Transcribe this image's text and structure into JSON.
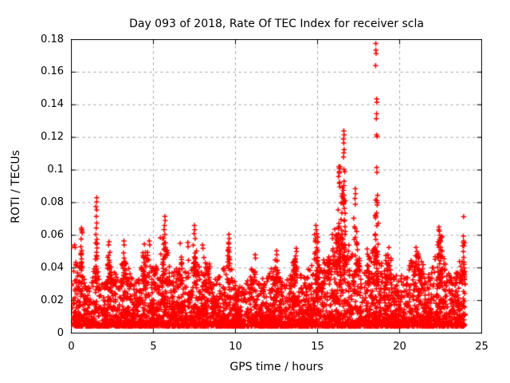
{
  "page": {
    "background": "#ffffff"
  },
  "chart_data": {
    "type": "scatter",
    "title": "Day 093 of 2018, Rate Of TEC Index for receiver scla",
    "xlabel": "GPS time / hours",
    "ylabel": "ROTI / TECUs",
    "series_name": "ROTI",
    "marker": "plus",
    "marker_color": "#ff0000",
    "axis_color": "#000000",
    "grid_color": "#9c9c9c",
    "grid": true,
    "legend": "none",
    "xlim": [
      0,
      25
    ],
    "ylim": [
      0,
      0.18
    ],
    "xticks": {
      "values": [
        0,
        5,
        10,
        15,
        20,
        25
      ],
      "labels": [
        "0",
        "5",
        "10",
        "15",
        "20",
        "25"
      ]
    },
    "yticks": {
      "values": [
        0,
        0.02,
        0.04,
        0.06,
        0.08,
        0.1,
        0.12,
        0.14,
        0.16,
        0.18
      ],
      "labels": [
        "0",
        "0.02",
        "0.04",
        "0.06",
        "0.08",
        "0.1",
        "0.12",
        "0.14",
        "0.16",
        "0.18"
      ]
    },
    "data_time_range": [
      0,
      24
    ],
    "baseline_noise": {
      "y_min": 0.0042,
      "count": 4300,
      "skew": 2.4,
      "seed": 20180931
    },
    "envelope": [
      [
        0.0,
        0.04
      ],
      [
        0.3,
        0.045
      ],
      [
        0.65,
        0.05
      ],
      [
        0.9,
        0.03
      ],
      [
        1.2,
        0.032
      ],
      [
        1.55,
        0.048
      ],
      [
        1.8,
        0.036
      ],
      [
        2.1,
        0.033
      ],
      [
        2.3,
        0.052
      ],
      [
        2.6,
        0.04
      ],
      [
        2.9,
        0.033
      ],
      [
        3.2,
        0.05
      ],
      [
        3.5,
        0.04
      ],
      [
        3.8,
        0.031
      ],
      [
        4.1,
        0.035
      ],
      [
        4.45,
        0.052
      ],
      [
        4.75,
        0.05
      ],
      [
        5.0,
        0.04
      ],
      [
        5.2,
        0.045
      ],
      [
        5.45,
        0.055
      ],
      [
        5.75,
        0.06
      ],
      [
        6.0,
        0.04
      ],
      [
        6.3,
        0.038
      ],
      [
        6.6,
        0.052
      ],
      [
        6.9,
        0.036
      ],
      [
        7.1,
        0.048
      ],
      [
        7.3,
        0.038
      ],
      [
        7.55,
        0.055
      ],
      [
        7.8,
        0.04
      ],
      [
        8.05,
        0.048
      ],
      [
        8.3,
        0.042
      ],
      [
        8.6,
        0.032
      ],
      [
        8.9,
        0.036
      ],
      [
        9.2,
        0.042
      ],
      [
        9.6,
        0.052
      ],
      [
        9.9,
        0.034
      ],
      [
        10.2,
        0.028
      ],
      [
        10.5,
        0.03
      ],
      [
        10.8,
        0.034
      ],
      [
        11.1,
        0.04
      ],
      [
        11.4,
        0.03
      ],
      [
        11.7,
        0.034
      ],
      [
        12.0,
        0.036
      ],
      [
        12.3,
        0.042
      ],
      [
        12.6,
        0.038
      ],
      [
        12.9,
        0.03
      ],
      [
        13.2,
        0.036
      ],
      [
        13.55,
        0.046
      ],
      [
        13.8,
        0.04
      ],
      [
        14.1,
        0.034
      ],
      [
        14.4,
        0.038
      ],
      [
        14.75,
        0.05
      ],
      [
        15.0,
        0.055
      ],
      [
        15.3,
        0.04
      ],
      [
        15.6,
        0.045
      ],
      [
        15.9,
        0.052
      ],
      [
        16.2,
        0.06
      ],
      [
        16.5,
        0.068
      ],
      [
        16.8,
        0.058
      ],
      [
        17.1,
        0.05
      ],
      [
        17.35,
        0.058
      ],
      [
        17.6,
        0.044
      ],
      [
        17.9,
        0.04
      ],
      [
        18.2,
        0.046
      ],
      [
        18.5,
        0.058
      ],
      [
        18.8,
        0.048
      ],
      [
        19.1,
        0.042
      ],
      [
        19.35,
        0.048
      ],
      [
        19.6,
        0.038
      ],
      [
        19.9,
        0.034
      ],
      [
        20.2,
        0.036
      ],
      [
        20.5,
        0.042
      ],
      [
        20.8,
        0.047
      ],
      [
        21.1,
        0.05
      ],
      [
        21.4,
        0.044
      ],
      [
        21.7,
        0.036
      ],
      [
        22.0,
        0.042
      ],
      [
        22.3,
        0.052
      ],
      [
        22.55,
        0.056
      ],
      [
        22.8,
        0.042
      ],
      [
        23.1,
        0.034
      ],
      [
        23.4,
        0.038
      ],
      [
        23.7,
        0.046
      ],
      [
        23.95,
        0.042
      ],
      [
        24.0,
        0.038
      ]
    ],
    "burst_columns": [
      [
        16.25,
        16.7,
        70,
        0.03,
        0.105
      ],
      [
        16.0,
        16.25,
        25,
        0.03,
        0.07
      ],
      [
        18.5,
        18.7,
        28,
        0.03,
        0.082
      ],
      [
        17.2,
        17.45,
        18,
        0.03,
        0.078
      ],
      [
        22.3,
        22.6,
        30,
        0.03,
        0.06
      ],
      [
        14.8,
        15.05,
        20,
        0.03,
        0.062
      ],
      [
        5.55,
        5.85,
        25,
        0.03,
        0.06
      ],
      [
        1.45,
        1.62,
        18,
        0.03,
        0.056
      ],
      [
        9.5,
        9.7,
        15,
        0.03,
        0.055
      ],
      [
        7.4,
        7.6,
        15,
        0.03,
        0.056
      ],
      [
        23.82,
        23.98,
        12,
        0.032,
        0.056
      ],
      [
        20.85,
        21.35,
        25,
        0.03,
        0.048
      ],
      [
        19.15,
        19.5,
        18,
        0.03,
        0.05
      ],
      [
        4.35,
        4.55,
        18,
        0.03,
        0.052
      ],
      [
        2.2,
        2.45,
        15,
        0.03,
        0.05
      ],
      [
        0.5,
        0.72,
        15,
        0.03,
        0.052
      ],
      [
        3.1,
        3.3,
        12,
        0.03,
        0.052
      ],
      [
        6.55,
        6.75,
        12,
        0.03,
        0.052
      ],
      [
        13.5,
        13.8,
        15,
        0.03,
        0.048
      ],
      [
        12.4,
        12.6,
        12,
        0.03,
        0.046
      ],
      [
        8.2,
        8.45,
        12,
        0.03,
        0.046
      ],
      [
        10.9,
        11.25,
        12,
        0.03,
        0.044
      ],
      [
        18.0,
        18.45,
        20,
        0.03,
        0.052
      ],
      [
        15.35,
        15.75,
        15,
        0.03,
        0.048
      ]
    ],
    "peak_points": [
      [
        0.02,
        0.0528
      ],
      [
        0.2,
        0.054
      ],
      [
        0.24,
        0.0525
      ],
      [
        0.62,
        0.0645
      ],
      [
        0.63,
        0.0635
      ],
      [
        0.65,
        0.0625
      ],
      [
        0.66,
        0.0615
      ],
      [
        0.6,
        0.0577
      ],
      [
        0.58,
        0.053
      ],
      [
        1.55,
        0.083
      ],
      [
        1.55,
        0.0805
      ],
      [
        1.5,
        0.0775
      ],
      [
        1.55,
        0.0755
      ],
      [
        1.52,
        0.0715
      ],
      [
        1.55,
        0.0675
      ],
      [
        1.52,
        0.0645
      ],
      [
        1.5,
        0.0605
      ],
      [
        1.56,
        0.0575
      ],
      [
        2.27,
        0.054
      ],
      [
        2.3,
        0.056
      ],
      [
        3.2,
        0.0565
      ],
      [
        3.22,
        0.054
      ],
      [
        4.45,
        0.0545
      ],
      [
        4.75,
        0.0565
      ],
      [
        4.78,
        0.054
      ],
      [
        5.42,
        0.0585
      ],
      [
        5.7,
        0.0715
      ],
      [
        5.72,
        0.069
      ],
      [
        5.68,
        0.066
      ],
      [
        5.65,
        0.0635
      ],
      [
        5.7,
        0.0605
      ],
      [
        6.63,
        0.055
      ],
      [
        7.1,
        0.0555
      ],
      [
        7.12,
        0.053
      ],
      [
        7.5,
        0.066
      ],
      [
        7.52,
        0.0635
      ],
      [
        7.48,
        0.061
      ],
      [
        7.55,
        0.058
      ],
      [
        8.0,
        0.054
      ],
      [
        8.02,
        0.052
      ],
      [
        9.6,
        0.0605
      ],
      [
        9.62,
        0.058
      ],
      [
        9.58,
        0.0555
      ],
      [
        11.2,
        0.048
      ],
      [
        11.22,
        0.046
      ],
      [
        12.5,
        0.0505
      ],
      [
        12.52,
        0.048
      ],
      [
        13.7,
        0.052
      ],
      [
        13.72,
        0.05
      ],
      [
        14.9,
        0.066
      ],
      [
        14.92,
        0.0635
      ],
      [
        14.95,
        0.061
      ],
      [
        14.88,
        0.058
      ],
      [
        15.9,
        0.0605
      ],
      [
        15.92,
        0.058
      ],
      [
        16.3,
        0.102
      ],
      [
        16.32,
        0.099
      ],
      [
        16.28,
        0.096
      ],
      [
        16.35,
        0.0925
      ],
      [
        16.6,
        0.124
      ],
      [
        16.62,
        0.1215
      ],
      [
        16.58,
        0.119
      ],
      [
        16.6,
        0.1165
      ],
      [
        16.62,
        0.1125
      ],
      [
        16.6,
        0.1105
      ],
      [
        16.58,
        0.108
      ],
      [
        16.62,
        0.093
      ],
      [
        16.6,
        0.0905
      ],
      [
        16.58,
        0.0875
      ],
      [
        16.62,
        0.0845
      ],
      [
        16.6,
        0.082
      ],
      [
        16.57,
        0.079
      ],
      [
        17.3,
        0.0885
      ],
      [
        17.32,
        0.0855
      ],
      [
        17.28,
        0.0825
      ],
      [
        17.3,
        0.079
      ],
      [
        18.55,
        0.1775
      ],
      [
        18.55,
        0.1735
      ],
      [
        18.57,
        0.1715
      ],
      [
        18.54,
        0.164
      ],
      [
        18.6,
        0.1435
      ],
      [
        18.62,
        0.1415
      ],
      [
        18.6,
        0.1345
      ],
      [
        18.58,
        0.1315
      ],
      [
        18.6,
        0.1215
      ],
      [
        18.63,
        0.1205
      ],
      [
        18.6,
        0.1015
      ],
      [
        18.62,
        0.0985
      ],
      [
        18.65,
        0.0845
      ],
      [
        18.6,
        0.0815
      ],
      [
        19.35,
        0.0525
      ],
      [
        21.0,
        0.0525
      ],
      [
        21.05,
        0.05
      ],
      [
        22.4,
        0.065
      ],
      [
        22.38,
        0.0635
      ],
      [
        22.42,
        0.0625
      ],
      [
        22.45,
        0.06
      ],
      [
        22.5,
        0.0585
      ],
      [
        23.9,
        0.0714
      ],
      [
        23.88,
        0.0595
      ],
      [
        23.9,
        0.0565
      ],
      [
        23.92,
        0.0535
      ],
      [
        23.88,
        0.05
      ],
      [
        23.9,
        0.0465
      ],
      [
        23.92,
        0.0435
      ]
    ]
  }
}
